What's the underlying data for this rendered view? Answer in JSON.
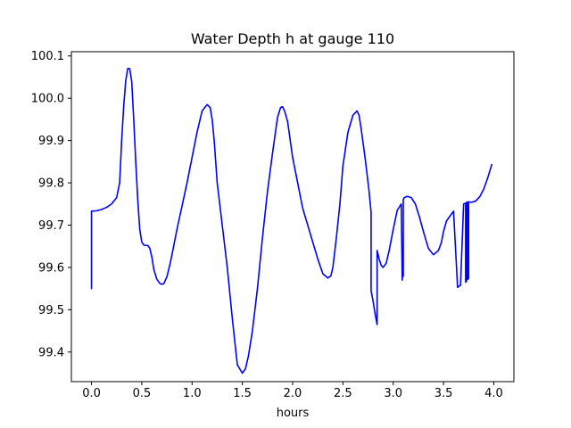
{
  "chart_data": {
    "type": "line",
    "title": "Water Depth h at gauge 110",
    "xlabel": "hours",
    "ylabel": "",
    "xlim": [
      -0.2,
      4.2
    ],
    "ylim": [
      99.33,
      100.11
    ],
    "xticks": [
      0.0,
      0.5,
      1.0,
      1.5,
      2.0,
      2.5,
      3.0,
      3.5,
      4.0
    ],
    "xtick_labels": [
      "0.0",
      "0.5",
      "1.0",
      "1.5",
      "2.0",
      "2.5",
      "3.0",
      "3.5",
      "4.0"
    ],
    "yticks": [
      99.4,
      99.5,
      99.6,
      99.7,
      99.8,
      99.9,
      100.0,
      100.1
    ],
    "ytick_labels": [
      "99.4",
      "99.5",
      "99.6",
      "99.7",
      "99.8",
      "99.9",
      "100.0",
      "100.1"
    ],
    "grid": false,
    "legend": "none",
    "series": [
      {
        "color": "#0000ff",
        "x": [
          0.0,
          0.0,
          0.05,
          0.1,
          0.15,
          0.2,
          0.25,
          0.28,
          0.3,
          0.32,
          0.34,
          0.36,
          0.38,
          0.4,
          0.42,
          0.44,
          0.46,
          0.48,
          0.5,
          0.52,
          0.54,
          0.56,
          0.58,
          0.6,
          0.62,
          0.65,
          0.68,
          0.7,
          0.72,
          0.75,
          0.78,
          0.8,
          0.85,
          0.9,
          0.95,
          1.0,
          1.05,
          1.1,
          1.15,
          1.18,
          1.2,
          1.22,
          1.25,
          1.3,
          1.35,
          1.4,
          1.45,
          1.5,
          1.53,
          1.56,
          1.6,
          1.65,
          1.7,
          1.75,
          1.8,
          1.85,
          1.88,
          1.9,
          1.92,
          1.95,
          2.0,
          2.05,
          2.1,
          2.15,
          2.2,
          2.25,
          2.3,
          2.35,
          2.38,
          2.4,
          2.43,
          2.47,
          2.5,
          2.55,
          2.6,
          2.64,
          2.66,
          2.68,
          2.72,
          2.76,
          2.78,
          2.78,
          2.8,
          2.82,
          2.84,
          2.84,
          2.86,
          2.88,
          2.9,
          2.93,
          2.96,
          3.0,
          3.04,
          3.08,
          3.09,
          3.09,
          3.1,
          3.1,
          3.11,
          3.14,
          3.18,
          3.22,
          3.26,
          3.3,
          3.35,
          3.4,
          3.45,
          3.48,
          3.5,
          3.53,
          3.56,
          3.6,
          3.64,
          3.67,
          3.67,
          3.7,
          3.72,
          3.72,
          3.73,
          3.73,
          3.74,
          3.74,
          3.75,
          3.75,
          3.78,
          3.82,
          3.86,
          3.9,
          3.94,
          3.98
        ],
        "y": [
          99.55,
          99.733,
          99.734,
          99.737,
          99.742,
          99.75,
          99.765,
          99.8,
          99.9,
          99.98,
          100.04,
          100.07,
          100.07,
          100.04,
          99.95,
          99.85,
          99.76,
          99.69,
          99.66,
          99.653,
          99.652,
          99.652,
          99.645,
          99.625,
          99.595,
          99.572,
          99.562,
          99.56,
          99.562,
          99.578,
          99.607,
          99.63,
          99.69,
          99.745,
          99.8,
          99.86,
          99.92,
          99.97,
          99.985,
          99.978,
          99.95,
          99.9,
          99.8,
          99.7,
          99.6,
          99.48,
          99.37,
          99.35,
          99.36,
          99.39,
          99.45,
          99.55,
          99.67,
          99.78,
          99.87,
          99.955,
          99.978,
          99.98,
          99.97,
          99.945,
          99.86,
          99.8,
          99.74,
          99.7,
          99.66,
          99.62,
          99.585,
          99.575,
          99.58,
          99.6,
          99.66,
          99.75,
          99.84,
          99.92,
          99.96,
          99.97,
          99.96,
          99.93,
          99.86,
          99.78,
          99.73,
          99.545,
          99.52,
          99.49,
          99.465,
          99.64,
          99.62,
          99.605,
          99.6,
          99.61,
          99.64,
          99.69,
          99.735,
          99.75,
          99.57,
          99.575,
          99.58,
          99.76,
          99.765,
          99.768,
          99.765,
          99.75,
          99.72,
          99.685,
          99.645,
          99.63,
          99.64,
          99.66,
          99.685,
          99.71,
          99.72,
          99.733,
          99.553,
          99.558,
          99.562,
          99.75,
          99.752,
          99.565,
          99.568,
          99.754,
          99.755,
          99.572,
          99.574,
          99.755,
          99.754,
          99.757,
          99.767,
          99.785,
          99.812,
          99.843
        ]
      }
    ]
  }
}
